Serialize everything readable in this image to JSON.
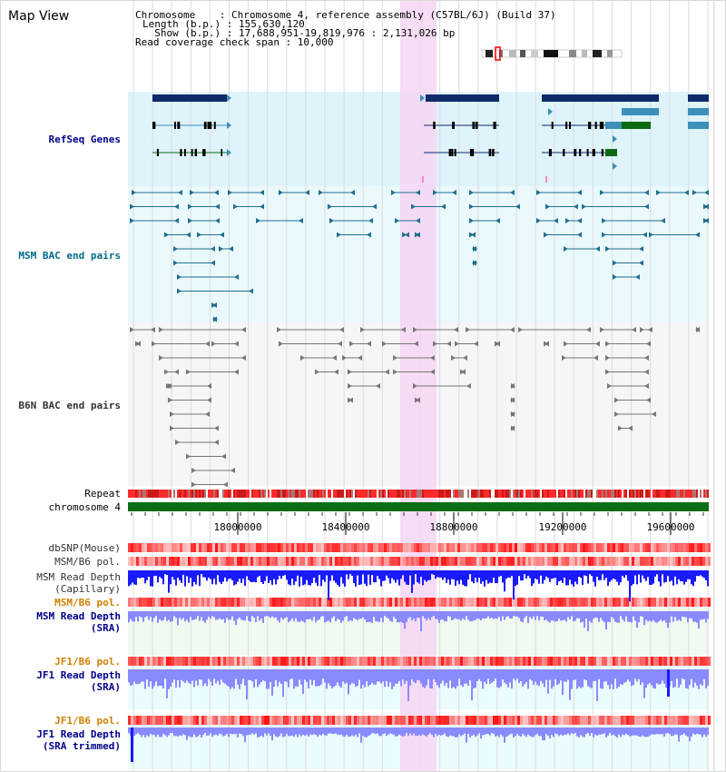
{
  "app": {
    "title": "Map View"
  },
  "info": {
    "chromosome": "Chromosome    : Chromosome 4, reference assembly (C57BL/6J) (Build 37)",
    "length": "Length (b.p.) : 155,630,120",
    "show": "  Show (b.p.) : 17,688,951-19,819,976 : 2,131,026 bp",
    "coverage": "Read coverage check span : 10,000"
  },
  "tracks": {
    "refseq": "RefSeq Genes",
    "msm_bac": "MSM BAC end pairs",
    "b6n_bac": "B6N BAC end pairs",
    "repeat": "Repeat",
    "chromosome": "chromosome 4",
    "dbsnp": "dbSNP(Mouse)",
    "msm_b6_pol_1": "MSM/B6 pol.",
    "msm_read_depth_cap": "MSM Read Depth\n(Capillary)",
    "msm_b6_pol_2": "MSM/B6 pol.",
    "msm_read_depth_sra": "MSM Read Depth\n(SRA)",
    "jf1_b6_pol_1": "JF1/B6 pol.",
    "jf1_read_depth_sra": "JF1 Read Depth\n(SRA)",
    "jf1_b6_pol_2": "JF1/B6 pol.",
    "jf1_read_depth_trim": "JF1 Read Depth\n(SRA trimmed)"
  },
  "axis": {
    "ticks": [
      "18000000",
      "18400000",
      "18800000",
      "19200000",
      "19600000"
    ]
  },
  "colors": {
    "refseq_bg": "#dff3fb",
    "highlight": "#f6d6f3",
    "gene_dark": "#0d2b6b",
    "gene_teal": "#3c8fb8",
    "gene_green": "#0b6b14",
    "bac_msm": "#1f6f8f",
    "bac_b6n": "#777777",
    "repeat_red": "#e01010",
    "chrom_green": "#0a6e14",
    "depth_blue": "#1a1aff",
    "depth_light": "#8a8aff"
  }
}
